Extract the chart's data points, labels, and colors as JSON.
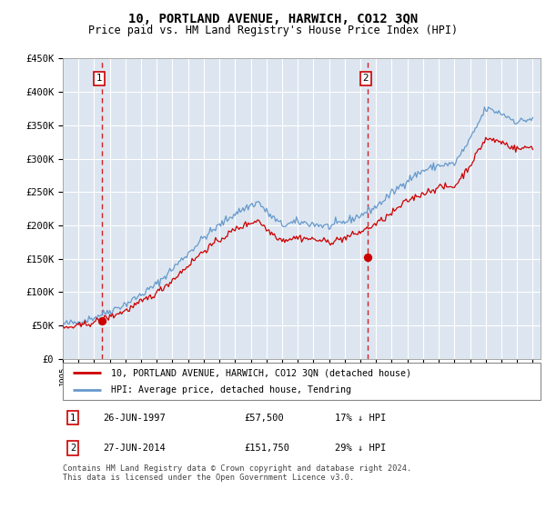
{
  "title": "10, PORTLAND AVENUE, HARWICH, CO12 3QN",
  "subtitle": "Price paid vs. HM Land Registry's House Price Index (HPI)",
  "ylim": [
    0,
    450000
  ],
  "yticks": [
    0,
    50000,
    100000,
    150000,
    200000,
    250000,
    300000,
    350000,
    400000,
    450000
  ],
  "ytick_labels": [
    "£0",
    "£50K",
    "£100K",
    "£150K",
    "£200K",
    "£250K",
    "£300K",
    "£350K",
    "£400K",
    "£450K"
  ],
  "xlim_start": 1995.0,
  "xlim_end": 2025.5,
  "purchase1_date": 1997.482,
  "purchase1_price": 57500,
  "purchase1_label": "1",
  "purchase1_date_str": "26-JUN-1997",
  "purchase1_price_str": "£57,500",
  "purchase1_hpi_str": "17% ↓ HPI",
  "purchase2_date": 2014.482,
  "purchase2_price": 151750,
  "purchase2_label": "2",
  "purchase2_date_str": "27-JUN-2014",
  "purchase2_price_str": "£151,750",
  "purchase2_hpi_str": "29% ↓ HPI",
  "red_line_color": "#cc0000",
  "blue_line_color": "#6699cc",
  "bg_color": "#dde6f0",
  "grid_color": "#ffffff",
  "legend_label_red": "10, PORTLAND AVENUE, HARWICH, CO12 3QN (detached house)",
  "legend_label_blue": "HPI: Average price, detached house, Tendring",
  "footnote": "Contains HM Land Registry data © Crown copyright and database right 2024.\nThis data is licensed under the Open Government Licence v3.0."
}
